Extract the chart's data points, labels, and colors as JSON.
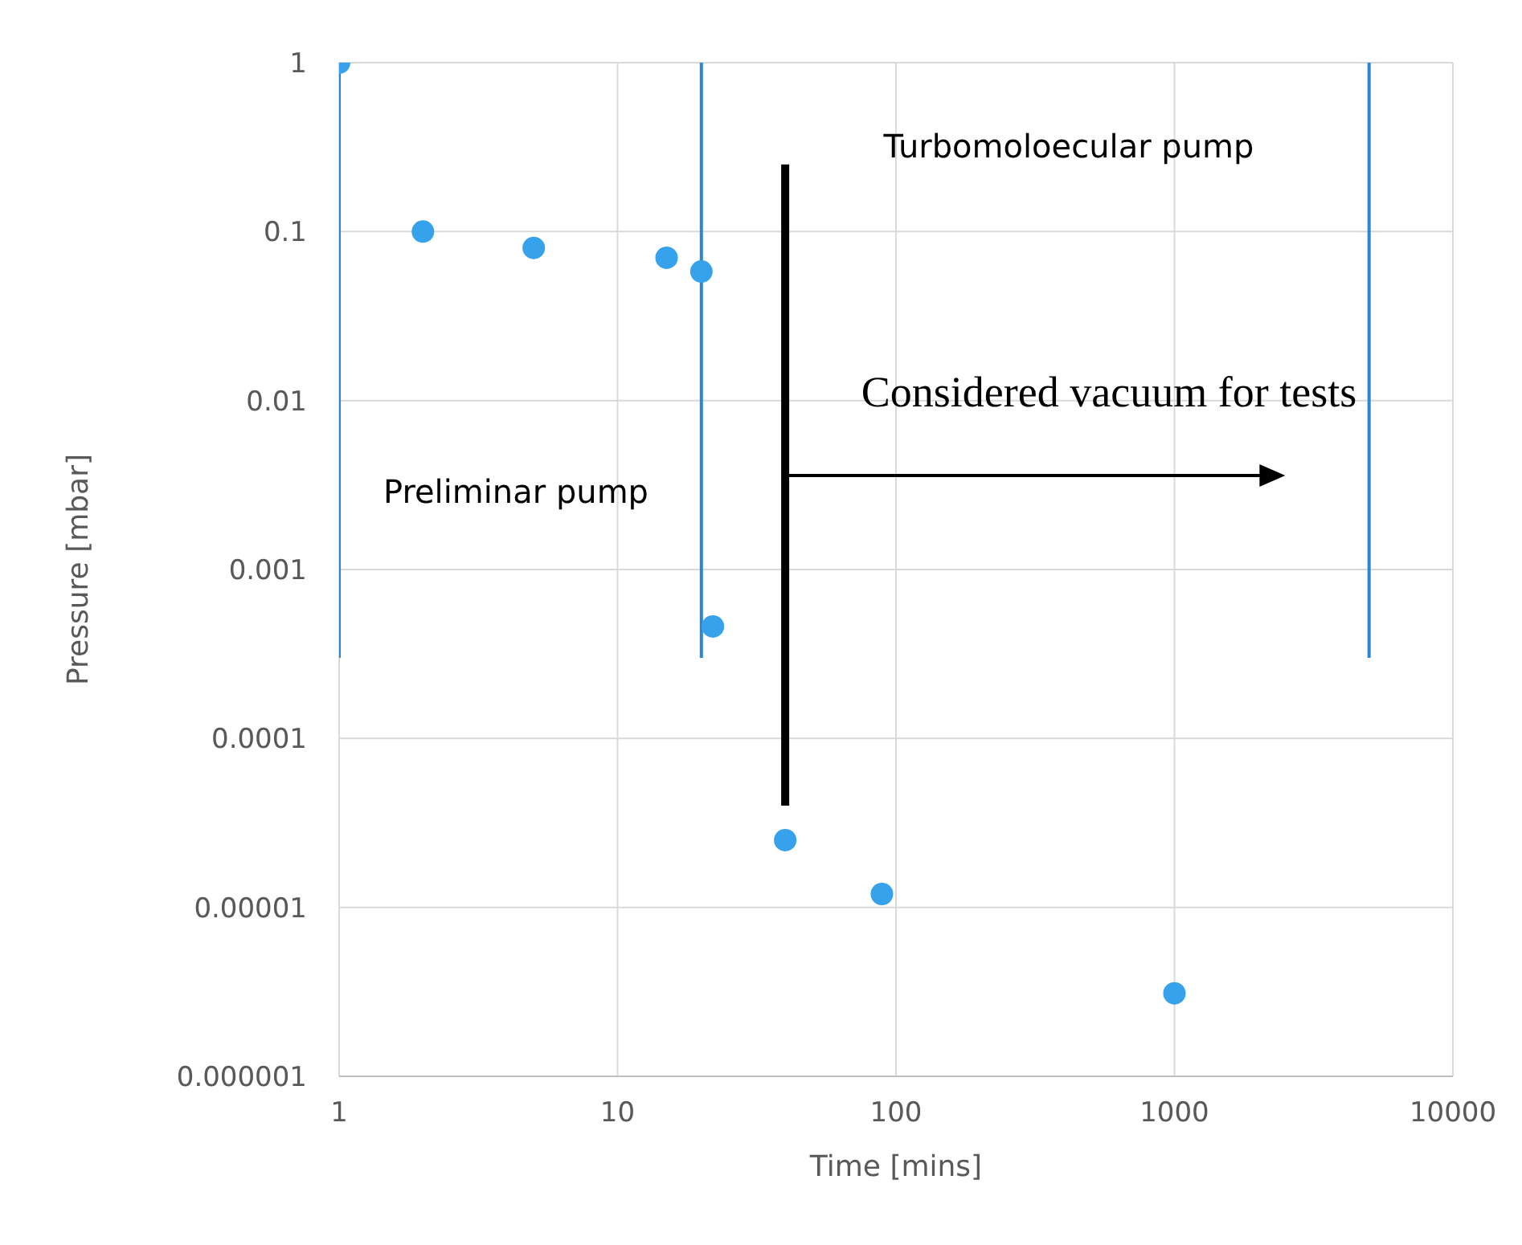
{
  "chart_data": {
    "type": "scatter",
    "xlabel": "Time [mins]",
    "ylabel": "Pressure [mbar]",
    "log": "xy",
    "grid": true,
    "legend": false,
    "marker": "circle",
    "xlim": [
      1,
      10000
    ],
    "xticks": [
      1,
      10,
      100,
      1000,
      10000
    ],
    "ylim": [
      1e-06,
      1
    ],
    "yticks": [
      {
        "value": 1e-06,
        "label": "0.000001"
      },
      {
        "value": 1e-05,
        "label": "0.00001"
      },
      {
        "value": 0.0001,
        "label": "0.0001"
      },
      {
        "value": 0.001,
        "label": "0.001"
      },
      0.01,
      0.1,
      1
    ],
    "x": [
      1,
      2,
      5,
      15,
      20,
      22,
      40,
      89,
      1000
    ],
    "series": [
      {
        "color": "#36a2eb",
        "values": [
          1,
          0.1,
          0.08,
          0.07,
          0.058,
          0.00046,
          2.5e-05,
          1.2e-05,
          3.1e-06
        ]
      },
      {
        "type": "line",
        "color": "#2e86d0",
        "x": [
          1,
          1
        ],
        "values": [
          1,
          0.0003
        ],
        "marker": "none"
      },
      {
        "type": "line",
        "color": "#2e86d0",
        "x": [
          20,
          20
        ],
        "values": [
          1,
          0.0003
        ],
        "marker": "none"
      },
      {
        "type": "line",
        "color": "#2e86d0",
        "x": [
          5000,
          5000
        ],
        "values": [
          1,
          0.0003
        ],
        "marker": "none"
      },
      {
        "type": "line",
        "color": "#000000",
        "x": [
          40,
          40
        ],
        "values": [
          0.25,
          4e-05
        ],
        "marker": "none"
      }
    ],
    "annotations": [
      "Turbomoloecular pump",
      "Considered vacuum for tests",
      "Preliminar pump"
    ]
  }
}
